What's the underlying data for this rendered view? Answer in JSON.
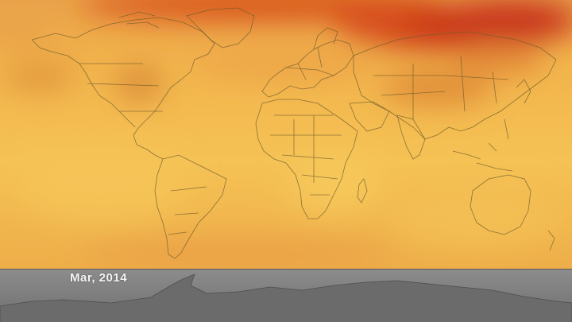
{
  "date_label": "Mar, 2014",
  "colors": {
    "base": "#f0b347",
    "warm_light": "#f6c75a",
    "warm_mid": "#e69a3a",
    "hot": "#d9431b",
    "hotter": "#c8321a",
    "band": "#7a7a7a",
    "coastline": "#6b5a2a"
  }
}
